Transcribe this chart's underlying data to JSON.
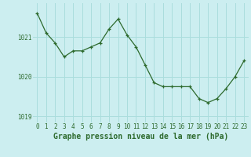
{
  "x": [
    0,
    1,
    2,
    3,
    4,
    5,
    6,
    7,
    8,
    9,
    10,
    11,
    12,
    13,
    14,
    15,
    16,
    17,
    18,
    19,
    20,
    21,
    22,
    23
  ],
  "y": [
    1021.6,
    1021.1,
    1020.85,
    1020.5,
    1020.65,
    1020.65,
    1020.75,
    1020.85,
    1021.2,
    1021.45,
    1021.05,
    1020.75,
    1020.3,
    1019.85,
    1019.75,
    1019.75,
    1019.75,
    1019.75,
    1019.45,
    1019.35,
    1019.45,
    1019.7,
    1020.0,
    1020.4
  ],
  "line_color": "#2d6a2d",
  "marker_color": "#2d6a2d",
  "bg_color": "#cceef0",
  "grid_color": "#aadddd",
  "xlabel": "Graphe pression niveau de la mer (hPa)",
  "xlabel_color": "#2d6a2d",
  "tick_label_color": "#2d6a2d",
  "ylim": [
    1018.85,
    1021.85
  ],
  "yticks": [
    1019.0,
    1020.0,
    1021.0
  ],
  "ytick_labels": [
    "1019",
    "1020",
    "1021"
  ],
  "xticks": [
    0,
    1,
    2,
    3,
    4,
    5,
    6,
    7,
    8,
    9,
    10,
    11,
    12,
    13,
    14,
    15,
    16,
    17,
    18,
    19,
    20,
    21,
    22,
    23
  ],
  "tick_fontsize": 5.5,
  "xlabel_fontsize": 7.0
}
